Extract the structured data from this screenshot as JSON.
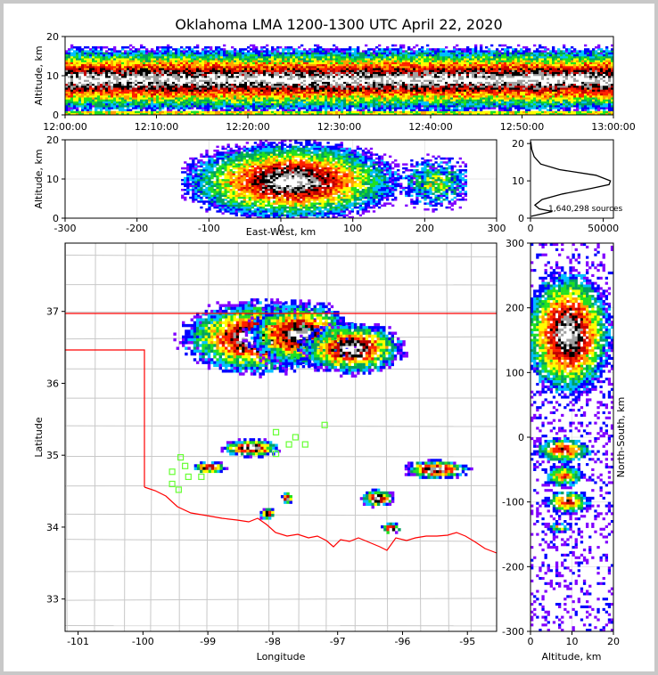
{
  "chart_data": [
    {
      "type": "heatmap",
      "name": "time-height",
      "title": "Oklahoma LMA 1200-1300 UTC April 22, 2020",
      "xlabel": "",
      "ylabel": "Altitude, km",
      "xticks": [
        "12:00:00",
        "12:10:00",
        "12:20:00",
        "12:30:00",
        "12:40:00",
        "12:50:00",
        "13:00:00"
      ],
      "xlim": [
        "12:00:00",
        "13:00:00"
      ],
      "yticks": [
        0,
        10,
        20
      ],
      "ylim": [
        0,
        20
      ],
      "core_altitude_km": 9,
      "core_band_km": [
        6,
        12
      ]
    },
    {
      "type": "heatmap",
      "name": "east-west-altitude",
      "xlabel": "East-West, km",
      "ylabel": "Altitude, km",
      "xticks": [
        -300,
        -200,
        -100,
        0,
        100,
        200,
        300
      ],
      "xlim": [
        -300,
        300
      ],
      "yticks": [
        0,
        10,
        20
      ],
      "ylim": [
        0,
        20
      ],
      "source_extent_km": [
        -140,
        260
      ]
    },
    {
      "type": "line",
      "name": "altitude-histogram",
      "annotation": "1,640,298 sources",
      "xticks": [
        0,
        50000
      ],
      "xlim": [
        0,
        57000
      ],
      "yticks": [
        0,
        10,
        20
      ],
      "ylim": [
        0,
        21
      ],
      "points": [
        {
          "count": 500,
          "alt": 0.5
        },
        {
          "count": 15000,
          "alt": 1.8
        },
        {
          "count": 6000,
          "alt": 2.5
        },
        {
          "count": 3000,
          "alt": 3.5
        },
        {
          "count": 8000,
          "alt": 5
        },
        {
          "count": 22000,
          "alt": 6.5
        },
        {
          "count": 42000,
          "alt": 8
        },
        {
          "count": 54000,
          "alt": 9
        },
        {
          "count": 55000,
          "alt": 10
        },
        {
          "count": 45000,
          "alt": 11.5
        },
        {
          "count": 20000,
          "alt": 13
        },
        {
          "count": 7000,
          "alt": 14.5
        },
        {
          "count": 2500,
          "alt": 16.5
        },
        {
          "count": 800,
          "alt": 18.5
        },
        {
          "count": 200,
          "alt": 20.5
        }
      ]
    },
    {
      "type": "heatmap",
      "name": "plan-view",
      "xlabel": "Longitude",
      "ylabel": "Latitude",
      "xticks": [
        -101,
        -100,
        -99,
        -98,
        -97,
        -96,
        -95
      ],
      "xlim": [
        -101.2,
        -94.55
      ],
      "yticks": [
        33,
        34,
        35,
        36,
        37
      ],
      "ylim": [
        32.55,
        37.95
      ],
      "storms": [
        {
          "lon": -98.3,
          "lat": 36.65,
          "rlon": 1.1,
          "rlat": 0.5
        },
        {
          "lon": -97.6,
          "lat": 36.7,
          "rlon": 0.8,
          "rlat": 0.45
        },
        {
          "lon": -96.8,
          "lat": 36.5,
          "rlon": 0.8,
          "rlat": 0.35
        },
        {
          "lon": -98.35,
          "lat": 35.12,
          "rlon": 0.45,
          "rlat": 0.12
        },
        {
          "lon": -99.0,
          "lat": 34.85,
          "rlon": 0.25,
          "rlat": 0.08
        },
        {
          "lon": -95.5,
          "lat": 34.82,
          "rlon": 0.5,
          "rlat": 0.13
        },
        {
          "lon": -96.4,
          "lat": 34.42,
          "rlon": 0.25,
          "rlat": 0.12
        },
        {
          "lon": -96.2,
          "lat": 34.0,
          "rlon": 0.15,
          "rlat": 0.08
        },
        {
          "lon": -98.1,
          "lat": 34.2,
          "rlon": 0.12,
          "rlat": 0.08
        },
        {
          "lon": -97.8,
          "lat": 34.42,
          "rlon": 0.1,
          "rlat": 0.08
        }
      ],
      "stations": [
        {
          "lon": -97.2,
          "lat": 35.42
        },
        {
          "lon": -97.95,
          "lat": 35.32
        },
        {
          "lon": -97.65,
          "lat": 35.25
        },
        {
          "lon": -97.75,
          "lat": 35.15
        },
        {
          "lon": -97.5,
          "lat": 35.15
        },
        {
          "lon": -97.95,
          "lat": 35.02
        },
        {
          "lon": -99.42,
          "lat": 34.97
        },
        {
          "lon": -99.35,
          "lat": 34.85
        },
        {
          "lon": -99.55,
          "lat": 34.77
        },
        {
          "lon": -99.1,
          "lat": 34.7
        },
        {
          "lon": -99.3,
          "lat": 34.7
        },
        {
          "lon": -99.55,
          "lat": 34.6
        },
        {
          "lon": -99.45,
          "lat": 34.52
        }
      ]
    },
    {
      "type": "heatmap",
      "name": "altitude-north-south",
      "xlabel": "Altitude, km",
      "ylabel": "North-South, km",
      "xticks": [
        0,
        10,
        20
      ],
      "xlim": [
        0,
        20
      ],
      "yticks": [
        -300,
        -200,
        -100,
        0,
        100,
        200,
        300
      ],
      "ylim": [
        -300,
        300
      ]
    }
  ],
  "colors": {
    "colormap": [
      "#8000ff",
      "#0000ff",
      "#00c0ff",
      "#00a060",
      "#20e020",
      "#ffff00",
      "#ffa000",
      "#ff2000",
      "#c00000",
      "#000000",
      "#a0a0a0",
      "#ffffff"
    ],
    "state_border": "#ff0000",
    "county_border": "#c0c0c0",
    "station": "#66ff33"
  }
}
